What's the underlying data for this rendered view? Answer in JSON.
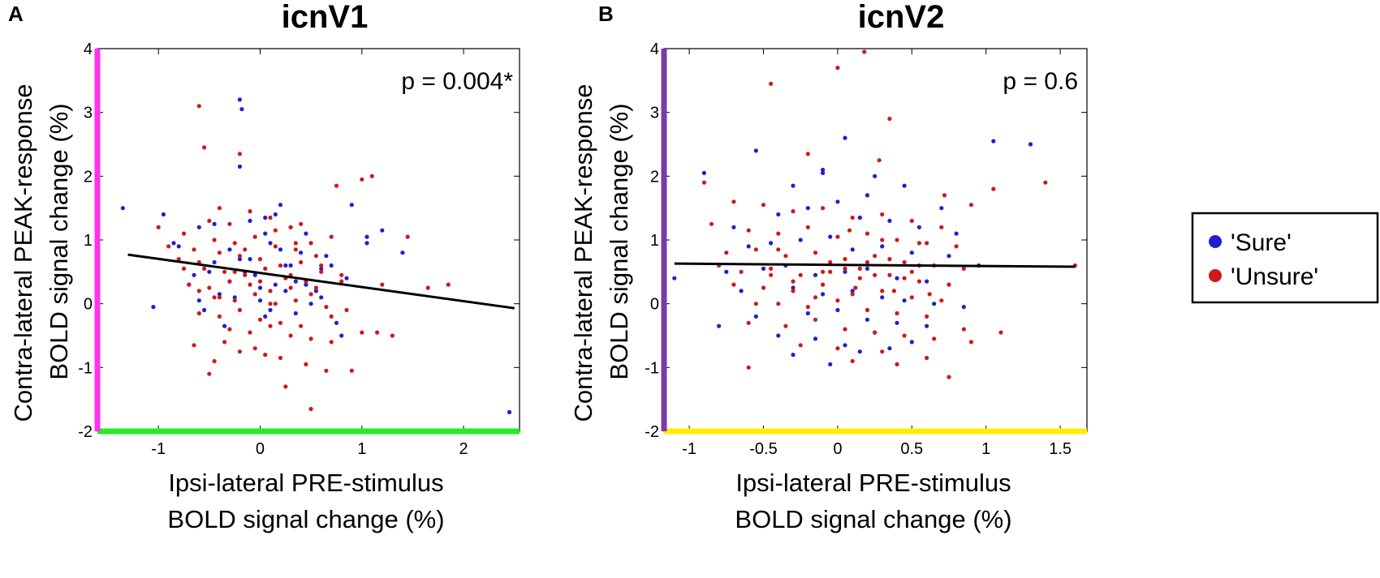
{
  "panels": {
    "a": {
      "letter": "A",
      "p_value": "p = 0.004*"
    },
    "b": {
      "letter": "B",
      "p_value": "p = 0.6"
    }
  },
  "colors": {
    "sure": "#1f1fd0",
    "unsure": "#cc1a1a",
    "fit": "#000000",
    "a_y_axis": "#ff33ee",
    "a_x_axis": "#22ee22",
    "b_y_axis": "#7a3aa8",
    "b_x_axis": "#ffee00"
  },
  "chart_data": [
    {
      "type": "scatter",
      "title": "icnV1",
      "xlabel": [
        "Ipsi-lateral PRE-stimulus",
        "BOLD signal change (%)"
      ],
      "ylabel": [
        "Contra-lateral PEAK-response",
        "BOLD signal change (%)"
      ],
      "xlim": [
        -1.6,
        2.55
      ],
      "ylim": [
        -2,
        4
      ],
      "xticks": [
        -1,
        0,
        1,
        2
      ],
      "yticks": [
        -2,
        -1,
        0,
        1,
        2,
        3,
        4
      ],
      "annotation": "p = 0.004*",
      "fit_line": {
        "x": [
          -1.3,
          2.5
        ],
        "y": [
          0.77,
          -0.07
        ]
      },
      "series": [
        {
          "name": "'Sure'",
          "x": [
            -1.35,
            -0.95,
            -0.8,
            -0.6,
            -0.45,
            -0.2,
            -0.18,
            -0.2,
            -0.1,
            0.05,
            0.2,
            0.15,
            0.3,
            0.45,
            0.9,
            1.05,
            1.2,
            1.4,
            0.7,
            -0.5,
            -0.3,
            -0.1,
            0.1,
            0.25,
            0.4,
            0.6,
            0.85,
            -0.7,
            -0.4,
            0.0,
            0.35,
            -1.05,
            -0.55,
            -0.25,
            0.05,
            0.5,
            0.75,
            -0.65,
            -0.15,
            0.15,
            0.55,
            2.45,
            -0.35,
            0.0,
            0.3,
            -0.85,
            0.65,
            1.05,
            -0.45,
            0.2,
            0.45,
            -0.05,
            0.1,
            -0.6,
            0.35,
            0.8,
            -0.3,
            0.25,
            0.6,
            -0.2,
            0.05
          ],
          "y": [
            1.5,
            1.4,
            0.9,
            1.2,
            1.25,
            3.2,
            3.05,
            2.15,
            1.3,
            1.35,
            1.55,
            1.4,
            1.2,
            1.1,
            1.55,
            1.05,
            1.15,
            0.8,
            0.6,
            0.5,
            0.85,
            0.7,
            0.95,
            0.6,
            0.8,
            0.55,
            0.4,
            0.3,
            0.15,
            0.25,
            0.35,
            -0.05,
            -0.1,
            0.1,
            -0.2,
            0.0,
            -0.3,
            0.45,
            0.5,
            0.3,
            0.2,
            -1.7,
            -0.35,
            0.05,
            0.6,
            0.95,
            0.75,
            0.95,
            0.65,
            0.85,
            0.3,
            0.45,
            -0.1,
            0.05,
            -0.15,
            -0.5,
            0.35,
            0.2,
            0.1,
            0.7,
            1.1
          ]
        },
        {
          "name": "'Unsure'",
          "x": [
            -0.6,
            -0.55,
            -0.4,
            -0.2,
            0.75,
            1.0,
            1.1,
            1.45,
            1.65,
            1.85,
            -1.0,
            -0.75,
            -0.5,
            -0.3,
            -0.1,
            0.1,
            0.3,
            0.5,
            0.7,
            -0.9,
            -0.65,
            -0.45,
            -0.25,
            -0.05,
            0.15,
            0.35,
            0.55,
            -0.8,
            -0.6,
            -0.4,
            -0.2,
            0.0,
            0.2,
            0.4,
            0.6,
            0.8,
            -0.55,
            -0.35,
            -0.15,
            0.05,
            0.25,
            0.45,
            -0.7,
            -0.5,
            -0.3,
            -0.1,
            0.1,
            0.3,
            0.5,
            -0.45,
            -0.25,
            -0.05,
            0.15,
            0.35,
            0.65,
            0.85,
            -0.6,
            -0.4,
            -0.2,
            0.0,
            0.2,
            0.4,
            -0.3,
            -0.1,
            0.1,
            0.3,
            0.5,
            0.7,
            1.0,
            1.3,
            -0.65,
            -0.45,
            0.05,
            0.45,
            0.65,
            -0.5,
            -0.2,
            0.25,
            0.9,
            -0.35,
            -0.05,
            0.2,
            0.5,
            -0.15,
            0.35,
            0.6,
            -0.6,
            0.15,
            0.4,
            0.8,
            1.15,
            -0.25,
            -0.75,
            0.0,
            0.3,
            0.55,
            1.2,
            -0.4,
            0.1,
            0.7
          ],
          "y": [
            3.1,
            2.45,
            1.5,
            2.35,
            1.85,
            1.95,
            2.0,
            1.05,
            0.25,
            0.3,
            1.2,
            1.1,
            1.3,
            1.25,
            1.45,
            1.35,
            1.2,
            0.95,
            1.05,
            0.9,
            0.85,
            1.0,
            0.95,
            1.05,
            0.9,
            0.85,
            0.75,
            0.7,
            0.65,
            0.8,
            0.75,
            0.7,
            0.6,
            0.65,
            0.5,
            0.45,
            0.55,
            0.5,
            0.45,
            0.55,
            0.4,
            0.35,
            0.3,
            0.25,
            0.35,
            0.3,
            0.2,
            0.25,
            0.15,
            0.1,
            0.05,
            0.15,
            0.0,
            0.05,
            -0.05,
            -0.1,
            -0.15,
            -0.2,
            -0.1,
            -0.25,
            -0.3,
            -0.35,
            -0.4,
            -0.45,
            -0.35,
            -0.5,
            -0.55,
            -0.6,
            -0.45,
            -0.5,
            -0.65,
            -0.9,
            -0.8,
            -0.95,
            -1.05,
            -1.1,
            -0.75,
            -1.3,
            -1.05,
            -0.6,
            -0.7,
            -0.85,
            -1.65,
            0.85,
            0.95,
            0.6,
            0.2,
            1.15,
            1.25,
            0.35,
            -0.45,
            0.5,
            0.55,
            0.35,
            0.45,
            0.25,
            0.3,
            0.1,
            0.0,
            -0.2
          ]
        }
      ]
    },
    {
      "type": "scatter",
      "title": "icnV2",
      "xlabel": [
        "Ipsi-lateral PRE-stimulus",
        "BOLD signal change (%)"
      ],
      "ylabel": [
        "Contra-lateral PEAK-response",
        "BOLD signal change (%)"
      ],
      "xlim": [
        -1.17,
        1.68
      ],
      "ylim": [
        -2,
        4
      ],
      "xticks": [
        -1,
        -0.5,
        0,
        0.5,
        1,
        1.5
      ],
      "yticks": [
        -2,
        -1,
        0,
        1,
        2,
        3,
        4
      ],
      "annotation": "p = 0.6",
      "fit_line": {
        "x": [
          -1.1,
          1.6
        ],
        "y": [
          0.63,
          0.58
        ]
      },
      "legend": {
        "position": "right",
        "entries": [
          "'Sure'",
          "'Unsure'"
        ]
      },
      "series": [
        {
          "name": "'Sure'",
          "x": [
            -0.9,
            -0.55,
            -0.3,
            -0.1,
            0.05,
            0.25,
            0.45,
            0.7,
            1.05,
            1.3,
            -0.7,
            -0.4,
            -0.2,
            0.0,
            0.15,
            0.35,
            0.55,
            0.8,
            -0.6,
            -0.45,
            -0.25,
            -0.05,
            0.1,
            0.3,
            0.5,
            0.75,
            0.95,
            -0.75,
            -0.5,
            -0.35,
            -0.15,
            0.05,
            0.2,
            0.4,
            0.6,
            -0.65,
            -0.3,
            -0.1,
            0.1,
            0.3,
            0.45,
            0.65,
            0.85,
            -0.55,
            -0.2,
            0.0,
            0.2,
            0.4,
            0.6,
            -0.4,
            -0.15,
            0.05,
            0.25,
            0.5,
            -0.3,
            -0.05,
            0.15,
            0.35,
            -1.1,
            -0.8,
            -0.1,
            0.2
          ],
          "y": [
            2.05,
            2.4,
            1.85,
            2.1,
            2.6,
            2.0,
            1.85,
            1.5,
            2.55,
            2.5,
            1.2,
            1.4,
            1.5,
            1.6,
            1.35,
            1.3,
            1.2,
            1.1,
            0.9,
            0.95,
            1.0,
            1.05,
            0.85,
            0.9,
            0.8,
            0.75,
            0.6,
            0.5,
            0.55,
            0.6,
            0.45,
            0.5,
            0.55,
            0.4,
            0.35,
            0.2,
            0.25,
            0.15,
            0.2,
            0.1,
            0.05,
            0.0,
            -0.05,
            -0.2,
            -0.15,
            -0.1,
            -0.25,
            -0.3,
            -0.35,
            -0.5,
            -0.55,
            -0.65,
            -0.45,
            -0.6,
            -0.8,
            -0.95,
            -0.75,
            -0.7,
            0.4,
            -0.35,
            2.05,
            1.7
          ]
        },
        {
          "name": "'Unsure'",
          "x": [
            -0.45,
            0.0,
            0.18,
            0.35,
            -0.2,
            0.28,
            1.4,
            1.05,
            0.9,
            0.72,
            -0.7,
            -0.5,
            -0.3,
            -0.1,
            0.1,
            0.3,
            0.5,
            0.7,
            -0.85,
            -0.6,
            -0.4,
            -0.2,
            0.0,
            0.2,
            0.4,
            0.6,
            0.8,
            -0.75,
            -0.55,
            -0.35,
            -0.15,
            0.05,
            0.25,
            0.45,
            0.65,
            0.85,
            -0.65,
            -0.45,
            -0.25,
            -0.05,
            0.15,
            0.35,
            0.55,
            0.75,
            -0.5,
            -0.3,
            -0.1,
            0.1,
            0.3,
            0.5,
            0.7,
            -0.4,
            -0.2,
            0.0,
            0.2,
            0.4,
            0.6,
            -0.6,
            -0.35,
            -0.15,
            0.05,
            0.25,
            0.45,
            0.65,
            -0.25,
            0.0,
            0.3,
            0.6,
            0.9,
            -0.6,
            0.1,
            0.4,
            0.75,
            1.1,
            1.6,
            -0.9,
            -0.7,
            0.85,
            -0.05,
            0.15,
            0.35,
            0.55,
            -0.45,
            -0.1,
            0.2,
            0.45,
            -0.3,
            0.05,
            0.25,
            0.5,
            0.75,
            -0.55,
            -0.15,
            0.12,
            0.38,
            0.62,
            -0.8,
            -0.4,
            0.08,
            0.3,
            0.55
          ],
          "y": [
            3.45,
            3.7,
            3.95,
            2.9,
            2.35,
            2.25,
            1.9,
            1.8,
            1.55,
            1.7,
            1.6,
            1.55,
            1.45,
            1.5,
            1.35,
            1.4,
            1.3,
            1.2,
            1.25,
            1.15,
            1.1,
            1.2,
            1.05,
            1.1,
            1.0,
            0.95,
            0.9,
            0.8,
            0.85,
            0.75,
            0.8,
            0.7,
            0.75,
            0.65,
            0.6,
            0.55,
            0.5,
            0.55,
            0.45,
            0.5,
            0.4,
            0.45,
            0.35,
            0.3,
            0.25,
            0.2,
            0.3,
            0.15,
            0.2,
            0.1,
            0.05,
            0.0,
            -0.05,
            0.05,
            -0.1,
            -0.15,
            -0.2,
            -0.3,
            -0.35,
            -0.25,
            -0.4,
            -0.45,
            -0.5,
            -0.55,
            -0.65,
            -0.7,
            -0.75,
            -0.85,
            -0.6,
            -1.0,
            -0.9,
            -0.95,
            -1.15,
            -0.45,
            0.6,
            1.9,
            0.3,
            -0.4,
            0.65,
            0.55,
            0.7,
            0.6,
            0.45,
            0.5,
            0.65,
            0.4,
            0.35,
            0.55,
            0.45,
            0.5,
            0.3,
            0.0,
            0.1,
            0.25,
            0.2,
            0.15,
            0.6,
            0.85,
            1.15,
            1.0,
            0.95
          ]
        }
      ]
    }
  ]
}
